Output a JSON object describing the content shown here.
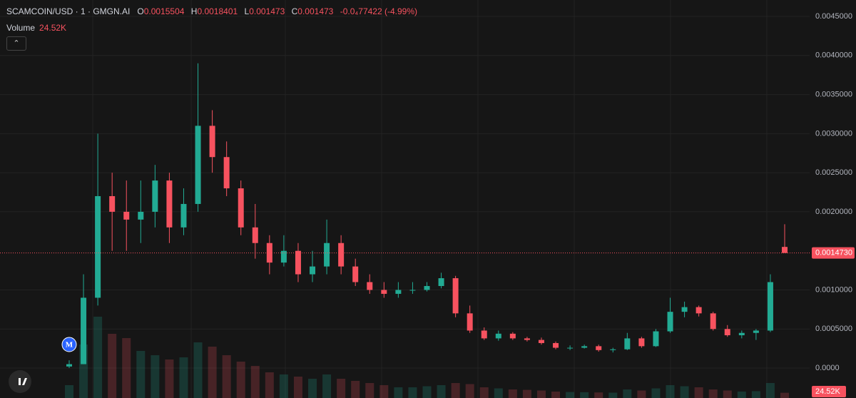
{
  "chart_data": {
    "type": "candlestick",
    "symbol": "SCAMCOIN/USD · 1 · GMGN.AI",
    "ohlc_labels": {
      "open": "O",
      "high": "H",
      "low": "L",
      "close": "C"
    },
    "last": {
      "open": 0.0015504,
      "high": 0.0018401,
      "low": 0.001473,
      "close": 0.001473,
      "change": "-0.0₄77422 (-4.99%)"
    },
    "volume_title": "Volume",
    "volume_last": {
      "value": 24520,
      "label": "24.52K"
    },
    "price_line": {
      "value": 0.001473,
      "label": "0.0014730"
    },
    "marker": "M",
    "open": [
      2e-05,
      5e-05,
      0.0009,
      0.0022,
      0.002,
      0.0019,
      0.002,
      0.0024,
      0.0018,
      0.0021,
      0.0031,
      0.0027,
      0.0023,
      0.0018,
      0.0016,
      0.00135,
      0.0015,
      0.0012,
      0.0013,
      0.0016,
      0.0013,
      0.0011,
      0.001,
      0.00095,
      0.001,
      0.001,
      0.00105,
      0.00115,
      0.0007,
      0.00048,
      0.00038,
      0.00044,
      0.00038,
      0.00036,
      0.00032,
      0.00026,
      0.00026,
      0.00028,
      0.00023,
      0.00024,
      0.00038,
      0.00028,
      0.00047,
      0.00072,
      0.00078,
      0.0007,
      0.0005,
      0.00042,
      0.00045,
      0.00048,
      0.0015504
    ],
    "high": [
      0.0001,
      0.0012,
      0.003,
      0.0025,
      0.0024,
      0.0024,
      0.0026,
      0.0025,
      0.0023,
      0.0039,
      0.0033,
      0.0029,
      0.0024,
      0.0021,
      0.0017,
      0.0017,
      0.0016,
      0.0015,
      0.0019,
      0.0017,
      0.0014,
      0.0012,
      0.0011,
      0.0011,
      0.0011,
      0.0011,
      0.00122,
      0.00118,
      0.0008,
      0.00052,
      0.00048,
      0.00046,
      0.0004,
      0.00039,
      0.00034,
      0.00029,
      0.0003,
      0.0003,
      0.00026,
      0.00045,
      0.0004,
      0.0005,
      0.0009,
      0.00085,
      0.0008,
      0.00072,
      0.00055,
      0.00048,
      0.0005,
      0.0012,
      0.0018401
    ],
    "low": [
      0.0,
      5e-05,
      0.0008,
      0.0015,
      0.0015,
      0.0016,
      0.0018,
      0.0016,
      0.0017,
      0.002,
      0.0025,
      0.0022,
      0.0017,
      0.0014,
      0.0012,
      0.0013,
      0.0011,
      0.0011,
      0.0012,
      0.0012,
      0.00105,
      0.00095,
      0.0009,
      0.0009,
      0.00095,
      0.00098,
      0.00102,
      0.00065,
      0.00045,
      0.00036,
      0.00035,
      0.00036,
      0.00034,
      0.0003,
      0.00024,
      0.00023,
      0.00025,
      0.00021,
      0.0002,
      0.00023,
      0.00026,
      0.00027,
      0.00045,
      0.00065,
      0.00066,
      0.00048,
      0.0004,
      0.00038,
      0.00036,
      0.00046,
      0.001473
    ],
    "close": [
      5e-05,
      0.0009,
      0.0022,
      0.002,
      0.0019,
      0.002,
      0.0024,
      0.0018,
      0.0021,
      0.0031,
      0.0027,
      0.0023,
      0.0018,
      0.0016,
      0.00135,
      0.0015,
      0.0012,
      0.0013,
      0.0016,
      0.0013,
      0.0011,
      0.001,
      0.00095,
      0.001,
      0.001,
      0.00105,
      0.00115,
      0.0007,
      0.00048,
      0.00038,
      0.00044,
      0.00038,
      0.00036,
      0.00032,
      0.00026,
      0.00026,
      0.00028,
      0.00023,
      0.00024,
      0.00038,
      0.00028,
      0.00047,
      0.00072,
      0.00078,
      0.0007,
      0.0005,
      0.00042,
      0.00045,
      0.00048,
      0.0011,
      0.001473
    ],
    "volume": [
      60000,
      250000,
      380000,
      300000,
      280000,
      220000,
      200000,
      180000,
      190000,
      260000,
      240000,
      200000,
      170000,
      150000,
      120000,
      110000,
      100000,
      90000,
      110000,
      90000,
      80000,
      70000,
      60000,
      50000,
      50000,
      55000,
      60000,
      70000,
      65000,
      50000,
      45000,
      40000,
      38000,
      35000,
      30000,
      28000,
      27000,
      26000,
      25000,
      40000,
      35000,
      45000,
      60000,
      55000,
      50000,
      40000,
      35000,
      30000,
      32000,
      70000,
      24520
    ],
    "up_color": "#22ab94",
    "down_color": "#f7525f",
    "ylim": [
      -0.000383,
      0.00471
    ],
    "yticks": [
      {
        "value": 0.0045,
        "label": "0.0045000"
      },
      {
        "value": 0.004,
        "label": "0.0040000"
      },
      {
        "value": 0.0035,
        "label": "0.0035000"
      },
      {
        "value": 0.003,
        "label": "0.0030000"
      },
      {
        "value": 0.0025,
        "label": "0.0025000"
      },
      {
        "value": 0.002,
        "label": "0.0020000"
      },
      {
        "value": 0.001,
        "label": "0.0010000"
      },
      {
        "value": 0.0005,
        "label": "0.0005000"
      },
      {
        "value": 0,
        "label": "0.0000"
      }
    ],
    "vlim": [
      0,
      400000
    ],
    "grid": true
  }
}
